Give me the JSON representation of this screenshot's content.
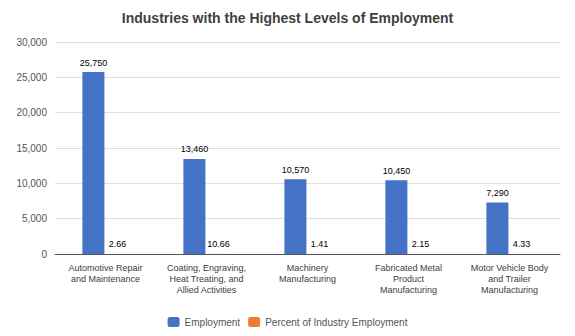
{
  "chart_data": {
    "type": "bar",
    "title": "Industries with the Highest Levels of Employment",
    "categories": [
      "Automotive Repair\nand Maintenance",
      "Coating, Engraving,\nHeat Treating, and\nAllied Activities",
      "Machinery\nManufacturing",
      "Fabricated Metal\nProduct\nManufacturing",
      "Motor Vehicle Body\nand Trailer\nManufacturing"
    ],
    "series": [
      {
        "name": "Employment",
        "color": "#4472C4",
        "values": [
          25750,
          13460,
          10570,
          10450,
          7290
        ],
        "value_labels": [
          "25,750",
          "13,460",
          "10,570",
          "10,450",
          "7,290"
        ]
      },
      {
        "name": "Percent of Industry Employment",
        "color": "#ED7D31",
        "values": [
          2.66,
          10.66,
          1.41,
          2.15,
          4.33
        ]
      }
    ],
    "ylim": [
      0,
      30000
    ],
    "yticks": [
      0,
      {
        "value": 5000,
        "label": "5,000"
      },
      {
        "value": 10000,
        "label": "10,000"
      },
      {
        "value": 15000,
        "label": "15,000"
      },
      {
        "value": 20000,
        "label": "20,000"
      },
      {
        "value": 25000,
        "label": "25,000"
      },
      {
        "value": 30000,
        "label": "30,000"
      }
    ],
    "grid": true,
    "legend": "bottom",
    "data_labels": true
  }
}
